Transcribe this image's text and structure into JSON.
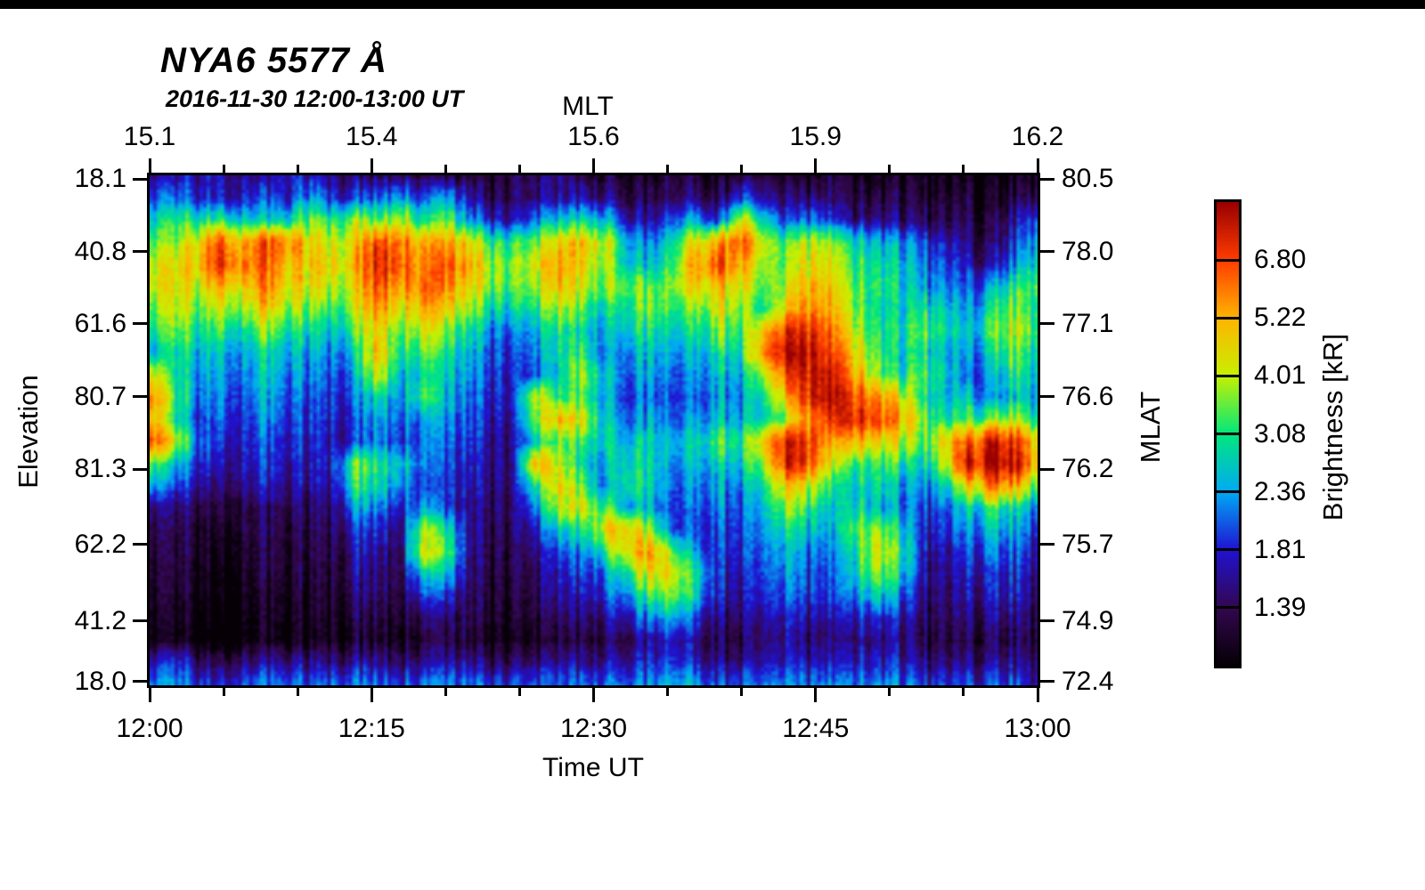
{
  "chart_data": {
    "type": "heatmap",
    "title": "NYA6 5577 Å",
    "subtitle": "2016-11-30 12:00-13:00 UT",
    "axes": {
      "top": {
        "label": "MLT",
        "ticks": [
          "15.1",
          "15.4",
          "15.6",
          "15.9",
          "16.2"
        ]
      },
      "bottom": {
        "label": "Time UT",
        "ticks": [
          "12:00",
          "12:15",
          "12:30",
          "12:45",
          "13:00"
        ],
        "minor_ticks_between_major": 2
      },
      "left": {
        "label": "Elevation",
        "ticks": [
          "18.1",
          "40.8",
          "61.6",
          "80.7",
          "81.3",
          "62.2",
          "41.2",
          "18.0"
        ]
      },
      "right": {
        "label": "MLAT",
        "ticks": [
          "80.5",
          "78.0",
          "77.1",
          "76.6",
          "76.2",
          "75.7",
          "74.9",
          "72.4"
        ]
      }
    },
    "colorbar": {
      "label": "Brightness [kR]",
      "tick_labels": [
        "6.80",
        "5.22",
        "4.01",
        "3.08",
        "2.36",
        "1.81",
        "1.39"
      ],
      "segments": 8,
      "scale": "log",
      "value_range_kr": [
        1.07,
        8.84
      ]
    },
    "colormap_stops": [
      {
        "v": 1.07,
        "c": "#060006"
      },
      {
        "v": 1.39,
        "c": "#33074f"
      },
      {
        "v": 1.81,
        "c": "#2012d2"
      },
      {
        "v": 2.36,
        "c": "#00aaf5"
      },
      {
        "v": 3.08,
        "c": "#00e87c"
      },
      {
        "v": 4.01,
        "c": "#c8f000"
      },
      {
        "v": 5.22,
        "c": "#ffb400"
      },
      {
        "v": 6.8,
        "c": "#ff3c00"
      },
      {
        "v": 8.84,
        "c": "#990000"
      }
    ],
    "grid": {
      "rows": 24,
      "cols": 40,
      "units": "kR",
      "x_span": [
        "12:00 UT",
        "13:00 UT"
      ],
      "y_span": [
        "elevation 18.1 (top)",
        "elevation 18.0 (bottom)"
      ],
      "values": [
        [
          1.6,
          1.7,
          1.7,
          1.8,
          1.6,
          1.5,
          1.9,
          1.7,
          1.6,
          1.5,
          1.4,
          1.6,
          1.4,
          1.3,
          1.25,
          1.25,
          1.3,
          1.4,
          1.5,
          1.4,
          1.3,
          1.25,
          1.2,
          1.3,
          1.25,
          1.2,
          1.3,
          1.25,
          1.2,
          1.15,
          1.25,
          1.2,
          1.15,
          1.2,
          1.15,
          1.1,
          1.15,
          1.1,
          1.15,
          1.2
        ],
        [
          2.0,
          2.2,
          1.9,
          1.9,
          1.8,
          2.0,
          1.9,
          2.4,
          1.9,
          2.0,
          2.1,
          2.6,
          2.0,
          2.4,
          1.6,
          1.4,
          1.35,
          1.5,
          1.6,
          1.7,
          1.6,
          1.4,
          1.35,
          1.4,
          1.5,
          1.35,
          2.0,
          1.6,
          1.4,
          1.5,
          1.4,
          1.3,
          1.35,
          1.3,
          1.25,
          1.2,
          1.25,
          1.2,
          1.3,
          1.4
        ],
        [
          2.6,
          3.2,
          3.0,
          3.4,
          2.8,
          2.6,
          3.0,
          3.6,
          3.2,
          4.0,
          3.4,
          4.4,
          3.0,
          3.4,
          2.2,
          1.8,
          1.6,
          2.2,
          2.6,
          3.0,
          2.6,
          1.8,
          1.6,
          2.0,
          2.4,
          1.8,
          4.2,
          2.6,
          1.8,
          2.2,
          1.8,
          1.5,
          1.6,
          1.5,
          1.4,
          1.3,
          1.35,
          1.3,
          1.6,
          2.0
        ],
        [
          3.4,
          3.8,
          4.6,
          7.2,
          5.2,
          6.6,
          6.2,
          4.6,
          4.2,
          4.8,
          6.8,
          6.4,
          5.4,
          5.2,
          4.4,
          3.2,
          3.0,
          3.6,
          4.6,
          5.0,
          4.2,
          2.6,
          2.2,
          2.8,
          4.4,
          5.6,
          6.4,
          3.8,
          3.2,
          4.2,
          3.6,
          2.8,
          2.6,
          2.4,
          2.0,
          1.7,
          1.5,
          1.4,
          1.8,
          2.4
        ],
        [
          4.2,
          4.4,
          5.0,
          7.6,
          6.0,
          6.2,
          5.4,
          4.8,
          4.6,
          5.2,
          7.4,
          7.0,
          5.8,
          6.2,
          5.0,
          3.8,
          3.4,
          4.2,
          5.4,
          4.6,
          3.8,
          2.8,
          2.6,
          3.2,
          5.2,
          6.8,
          5.2,
          3.6,
          3.4,
          4.6,
          4.0,
          3.2,
          3.0,
          2.6,
          2.2,
          1.9,
          1.7,
          1.6,
          2.2,
          2.8
        ],
        [
          4.0,
          4.6,
          4.2,
          5.4,
          4.6,
          5.8,
          4.8,
          4.4,
          4.0,
          4.6,
          6.6,
          5.6,
          6.4,
          5.6,
          4.4,
          3.6,
          3.2,
          3.8,
          4.8,
          4.2,
          3.6,
          3.8,
          3.4,
          3.6,
          4.4,
          5.0,
          4.2,
          3.2,
          3.8,
          5.2,
          4.4,
          3.4,
          3.2,
          2.8,
          2.4,
          2.2,
          2.0,
          2.4,
          3.0,
          3.4
        ],
        [
          3.4,
          4.2,
          3.6,
          4.4,
          3.8,
          4.6,
          4.0,
          3.6,
          3.2,
          4.2,
          5.6,
          4.6,
          5.4,
          4.4,
          3.6,
          2.8,
          2.6,
          3.0,
          3.8,
          3.4,
          2.8,
          3.2,
          3.6,
          3.0,
          3.4,
          4.4,
          3.6,
          2.8,
          4.4,
          5.8,
          4.8,
          3.6,
          3.0,
          2.6,
          3.0,
          2.6,
          2.2,
          3.0,
          3.6,
          3.0
        ],
        [
          2.8,
          3.6,
          3.0,
          3.4,
          2.8,
          3.6,
          3.2,
          2.8,
          2.6,
          3.4,
          4.6,
          3.6,
          4.4,
          3.4,
          2.8,
          2.2,
          2.0,
          2.4,
          3.0,
          2.8,
          2.4,
          2.8,
          3.0,
          2.6,
          2.8,
          3.6,
          3.2,
          4.6,
          6.8,
          7.4,
          5.6,
          4.0,
          3.2,
          2.8,
          3.4,
          2.8,
          2.4,
          3.4,
          4.0,
          3.2
        ],
        [
          2.4,
          3.0,
          2.6,
          2.8,
          2.4,
          2.8,
          2.6,
          2.4,
          2.2,
          2.8,
          5.0,
          3.0,
          3.6,
          2.8,
          2.4,
          2.0,
          1.8,
          2.2,
          2.8,
          3.2,
          2.2,
          2.4,
          2.6,
          2.2,
          2.4,
          3.0,
          2.8,
          5.4,
          8.0,
          8.2,
          6.4,
          4.6,
          3.4,
          2.6,
          3.0,
          2.4,
          2.2,
          2.8,
          3.4,
          2.8
        ],
        [
          4.4,
          3.0,
          2.4,
          2.6,
          2.2,
          2.6,
          2.4,
          2.2,
          2.0,
          2.4,
          4.2,
          2.6,
          3.0,
          2.6,
          2.2,
          1.9,
          1.7,
          2.0,
          2.6,
          4.0,
          2.6,
          2.2,
          2.4,
          2.0,
          2.2,
          2.6,
          2.4,
          3.6,
          6.2,
          7.8,
          7.4,
          5.2,
          3.8,
          2.8,
          3.4,
          2.6,
          2.0,
          2.4,
          3.0,
          2.6
        ],
        [
          5.8,
          3.4,
          2.2,
          2.4,
          2.0,
          2.4,
          2.2,
          2.0,
          1.9,
          2.2,
          2.8,
          2.4,
          3.4,
          2.4,
          2.0,
          1.8,
          1.7,
          4.2,
          3.0,
          3.4,
          2.4,
          2.0,
          2.2,
          1.9,
          2.0,
          2.4,
          2.2,
          2.8,
          4.6,
          7.6,
          7.8,
          6.6,
          5.8,
          4.4,
          3.0,
          2.4,
          2.6,
          2.2,
          2.6,
          2.4
        ],
        [
          5.2,
          3.0,
          2.0,
          2.2,
          1.9,
          2.2,
          2.0,
          1.9,
          1.8,
          2.0,
          2.4,
          2.2,
          2.4,
          2.2,
          1.9,
          1.7,
          1.6,
          3.6,
          5.0,
          4.4,
          2.6,
          2.2,
          2.4,
          2.0,
          2.2,
          2.6,
          2.4,
          2.6,
          3.4,
          5.6,
          6.8,
          7.4,
          7.0,
          5.4,
          3.6,
          2.8,
          3.2,
          3.6,
          3.8,
          3.0
        ],
        [
          6.6,
          4.4,
          2.2,
          2.0,
          1.8,
          2.0,
          1.9,
          1.8,
          1.7,
          1.9,
          2.2,
          2.0,
          2.2,
          2.0,
          1.8,
          1.6,
          1.5,
          2.6,
          3.4,
          3.2,
          2.8,
          2.6,
          2.8,
          2.4,
          2.6,
          3.4,
          3.0,
          4.6,
          7.4,
          7.0,
          4.8,
          5.2,
          4.6,
          4.2,
          3.2,
          4.6,
          6.2,
          8.0,
          7.2,
          4.6
        ],
        [
          3.4,
          2.6,
          1.9,
          1.8,
          1.7,
          1.9,
          1.8,
          1.7,
          1.8,
          3.6,
          3.0,
          2.8,
          2.2,
          1.9,
          1.7,
          1.6,
          1.5,
          5.2,
          3.8,
          2.8,
          2.4,
          3.0,
          2.8,
          2.2,
          2.4,
          2.8,
          2.6,
          3.6,
          7.2,
          6.6,
          3.8,
          3.2,
          3.4,
          3.0,
          2.6,
          3.8,
          7.6,
          8.6,
          8.2,
          5.0
        ],
        [
          2.4,
          2.0,
          1.7,
          1.6,
          1.6,
          1.7,
          1.7,
          1.6,
          1.7,
          3.2,
          2.8,
          2.4,
          2.0,
          1.8,
          1.6,
          1.5,
          1.5,
          3.0,
          4.6,
          3.4,
          2.2,
          3.2,
          2.8,
          2.0,
          2.2,
          2.4,
          2.2,
          2.8,
          4.6,
          4.2,
          2.8,
          2.6,
          3.0,
          2.4,
          2.2,
          2.6,
          4.4,
          6.2,
          5.4,
          3.4
        ],
        [
          1.5,
          1.5,
          1.4,
          1.35,
          1.35,
          1.4,
          1.45,
          1.4,
          1.5,
          2.4,
          2.2,
          1.9,
          2.4,
          1.8,
          1.5,
          1.45,
          1.4,
          2.2,
          4.0,
          4.4,
          3.2,
          2.6,
          2.4,
          1.9,
          2.0,
          2.2,
          2.0,
          2.4,
          3.6,
          3.2,
          2.4,
          2.8,
          2.6,
          2.2,
          1.9,
          2.0,
          2.6,
          3.2,
          2.8,
          2.2
        ],
        [
          1.35,
          1.4,
          1.3,
          1.25,
          1.3,
          1.35,
          1.4,
          1.35,
          1.4,
          1.9,
          1.8,
          1.6,
          4.0,
          2.8,
          1.5,
          1.4,
          1.35,
          1.7,
          2.6,
          3.0,
          4.6,
          5.2,
          3.6,
          1.9,
          1.9,
          2.0,
          1.9,
          2.2,
          2.8,
          2.6,
          2.2,
          3.4,
          3.8,
          2.8,
          1.8,
          1.8,
          2.2,
          2.6,
          2.4,
          1.9
        ],
        [
          1.3,
          1.35,
          1.25,
          1.2,
          1.25,
          1.3,
          1.35,
          1.3,
          1.35,
          1.7,
          1.6,
          1.5,
          4.4,
          3.2,
          1.45,
          1.35,
          1.3,
          1.5,
          2.0,
          2.2,
          3.0,
          4.8,
          5.4,
          3.4,
          2.2,
          1.9,
          1.8,
          2.0,
          2.4,
          2.2,
          2.0,
          2.8,
          4.4,
          3.2,
          1.7,
          1.6,
          1.9,
          2.2,
          2.0,
          1.7
        ],
        [
          1.25,
          1.3,
          1.2,
          1.15,
          1.2,
          1.25,
          1.3,
          1.25,
          1.3,
          1.6,
          1.5,
          1.45,
          2.8,
          2.4,
          1.4,
          1.3,
          1.25,
          1.4,
          1.7,
          1.9,
          2.2,
          3.2,
          4.6,
          4.2,
          2.8,
          1.8,
          1.7,
          1.9,
          2.2,
          2.0,
          1.9,
          2.6,
          3.8,
          2.8,
          1.6,
          1.5,
          1.7,
          1.9,
          1.8,
          1.6
        ],
        [
          1.2,
          1.25,
          1.15,
          1.1,
          1.15,
          1.2,
          1.25,
          1.2,
          1.25,
          1.5,
          1.45,
          1.4,
          2.0,
          1.8,
          1.35,
          1.25,
          1.2,
          1.35,
          1.6,
          1.7,
          1.9,
          2.4,
          3.2,
          3.6,
          2.6,
          1.7,
          1.6,
          1.8,
          2.0,
          1.9,
          1.8,
          2.2,
          2.8,
          2.2,
          1.5,
          1.45,
          1.6,
          1.8,
          1.7,
          1.5
        ],
        [
          1.15,
          1.2,
          1.1,
          1.05,
          1.1,
          1.15,
          1.2,
          1.15,
          1.2,
          1.35,
          1.3,
          1.3,
          1.5,
          1.4,
          1.3,
          1.2,
          1.15,
          1.25,
          1.4,
          1.5,
          1.6,
          1.8,
          2.2,
          2.4,
          1.9,
          1.5,
          1.45,
          1.55,
          1.7,
          1.6,
          1.55,
          1.7,
          1.9,
          1.7,
          1.4,
          1.35,
          1.45,
          1.55,
          1.5,
          1.4
        ],
        [
          1.1,
          1.15,
          1.05,
          1.0,
          1.05,
          1.1,
          1.15,
          1.1,
          1.15,
          1.25,
          1.2,
          1.2,
          1.3,
          1.25,
          1.2,
          1.1,
          1.05,
          1.15,
          1.25,
          1.3,
          1.35,
          1.45,
          1.6,
          1.7,
          1.5,
          1.35,
          1.3,
          1.4,
          1.5,
          1.45,
          1.4,
          1.5,
          1.6,
          1.5,
          1.3,
          1.25,
          1.3,
          1.4,
          1.35,
          1.3
        ],
        [
          1.6,
          1.9,
          1.5,
          1.4,
          1.5,
          1.55,
          1.6,
          1.5,
          1.55,
          1.6,
          1.55,
          1.5,
          1.6,
          1.55,
          1.5,
          1.4,
          1.35,
          1.45,
          1.55,
          1.6,
          1.6,
          1.7,
          1.8,
          1.9,
          1.7,
          1.55,
          1.5,
          1.6,
          1.7,
          1.65,
          1.6,
          1.7,
          1.8,
          1.7,
          1.5,
          1.45,
          1.5,
          1.6,
          1.55,
          1.45
        ],
        [
          2.2,
          2.4,
          2.0,
          1.9,
          2.0,
          2.1,
          2.2,
          2.0,
          2.1,
          2.2,
          2.1,
          2.0,
          2.2,
          2.1,
          2.0,
          1.9,
          1.85,
          1.95,
          2.05,
          2.1,
          2.1,
          2.2,
          2.3,
          2.4,
          2.2,
          2.0,
          1.95,
          2.05,
          2.15,
          2.1,
          2.05,
          2.15,
          2.25,
          2.15,
          1.9,
          1.8,
          1.9,
          2.0,
          1.95,
          1.6
        ]
      ]
    }
  }
}
